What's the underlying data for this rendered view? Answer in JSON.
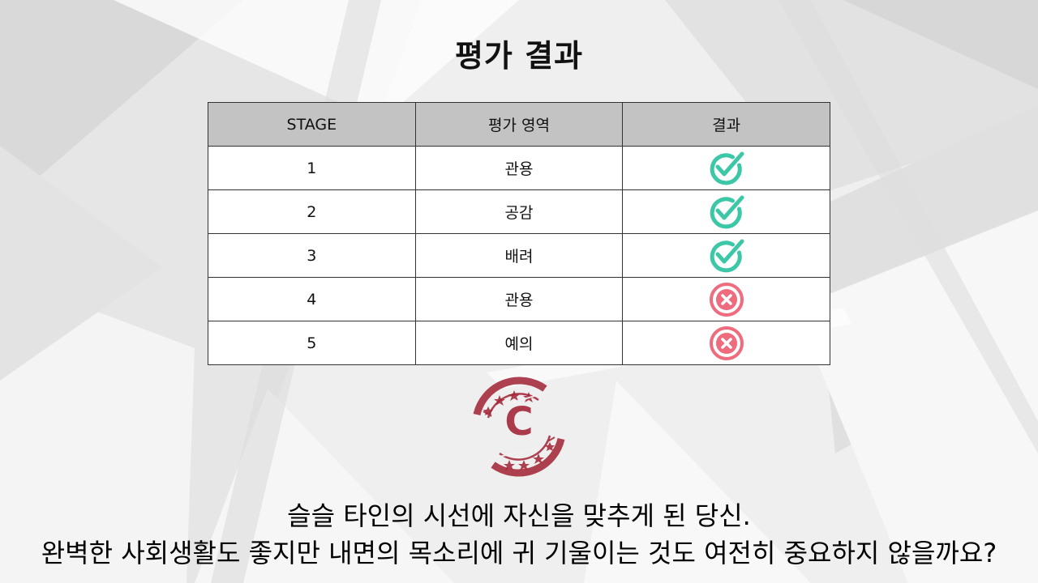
{
  "title": "평가 결과",
  "table": {
    "headers": [
      "STAGE",
      "평가 영역",
      "결과"
    ],
    "rows": [
      {
        "stage": "1",
        "area": "관용",
        "result": "pass"
      },
      {
        "stage": "2",
        "area": "공감",
        "result": "pass"
      },
      {
        "stage": "3",
        "area": "배려",
        "result": "pass"
      },
      {
        "stage": "4",
        "area": "관용",
        "result": "fail"
      },
      {
        "stage": "5",
        "area": "예의",
        "result": "fail"
      }
    ]
  },
  "icons": {
    "pass": "check-circle-icon",
    "fail": "x-circle-icon"
  },
  "colors": {
    "pass": "#3cc7a6",
    "fail": "#ef6b7e",
    "stamp": "#a4283a",
    "header_bg": "#c3c3c3"
  },
  "stamp": {
    "grade": "C"
  },
  "message": {
    "line1": "슬슬 타인의 시선에 자신을 맞추게 된 당신.",
    "line2": "완벽한 사회생활도 좋지만 내면의 목소리에 귀 기울이는 것도 여전히 중요하지 않을까요?"
  }
}
